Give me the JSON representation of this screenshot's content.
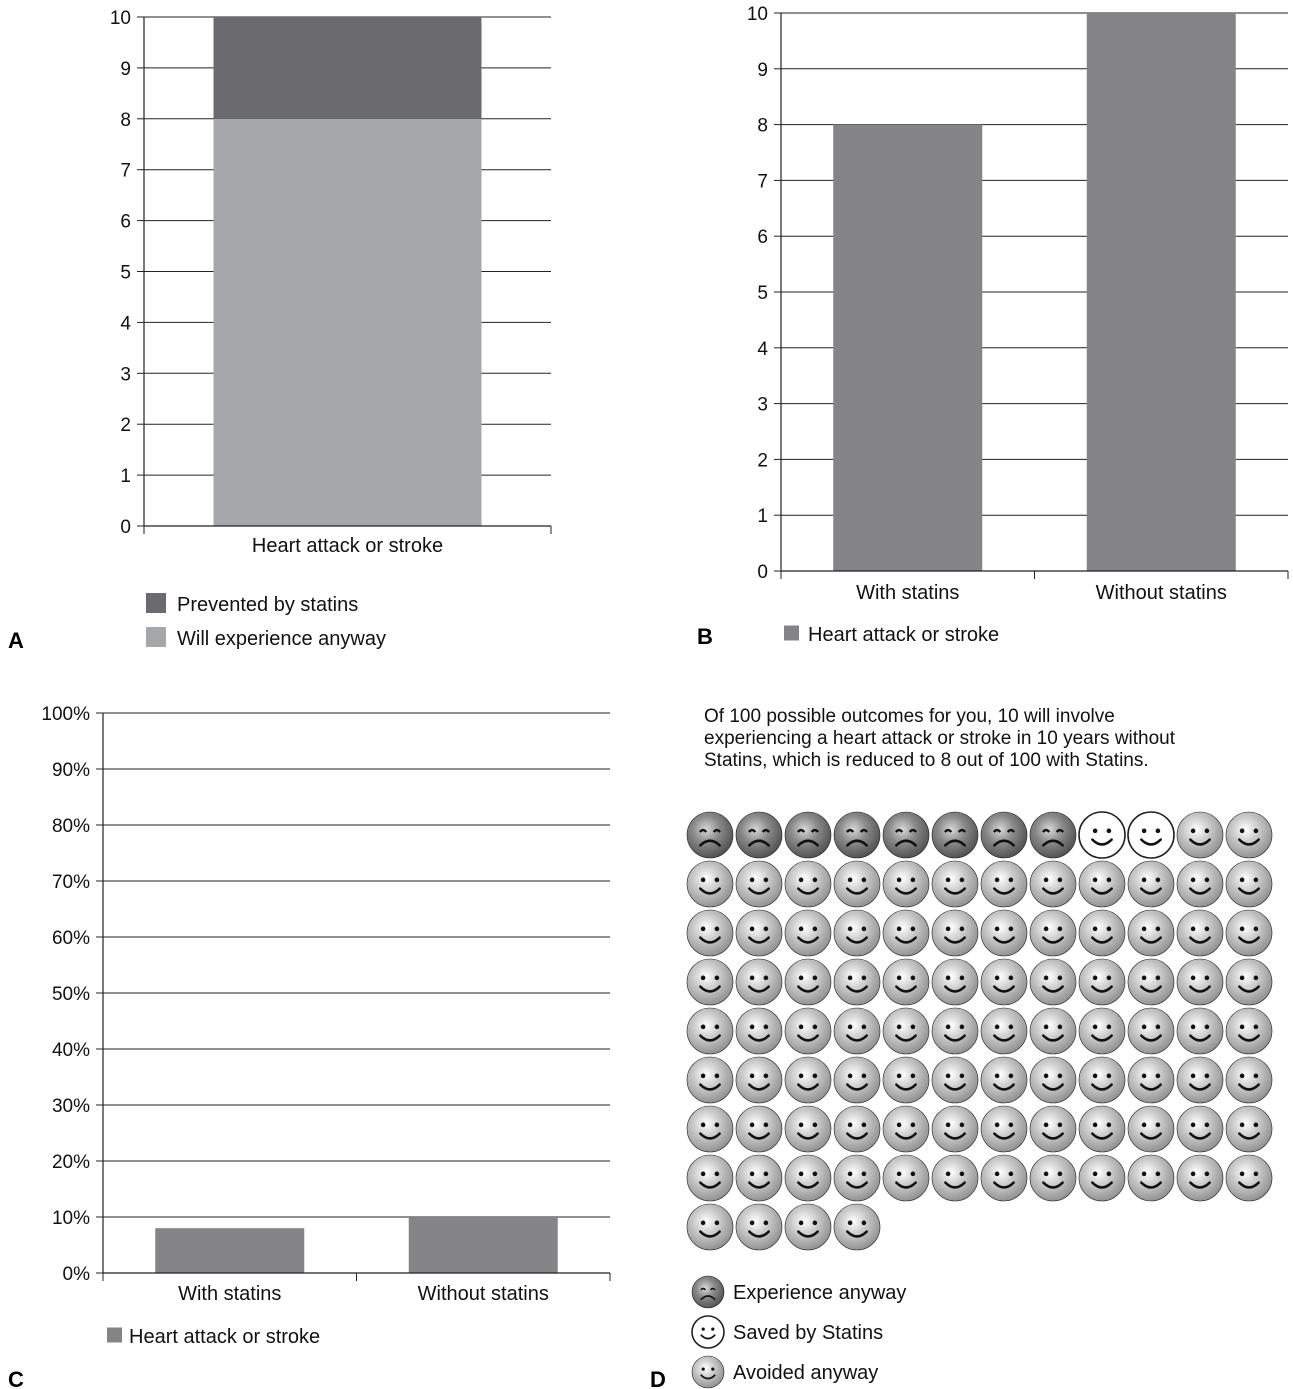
{
  "colors": {
    "prevented": "#6b6b6f",
    "anyway": "#a6a7ab",
    "bar": "#848487",
    "axis": "#222222"
  },
  "panel_labels": [
    "A",
    "B",
    "C",
    "D"
  ],
  "chart_data": [
    {
      "panel": "A",
      "type": "bar",
      "stacked": true,
      "categories": [
        "Heart attack or stroke"
      ],
      "series": [
        {
          "name": "Will experience anyway",
          "values": [
            8
          ]
        },
        {
          "name": "Prevented by statins",
          "values": [
            2
          ]
        }
      ],
      "yticks": [
        "0",
        "1",
        "2",
        "3",
        "4",
        "5",
        "6",
        "7",
        "8",
        "9",
        "10"
      ],
      "ylim": [
        0,
        10
      ],
      "grid": true,
      "legend": [
        "Prevented by statins",
        "Will experience anyway"
      ],
      "legend_position": "bottom"
    },
    {
      "panel": "B",
      "type": "bar",
      "categories": [
        "With statins",
        "Without statins"
      ],
      "series": [
        {
          "name": "Heart attack or stroke",
          "values": [
            8,
            10
          ]
        }
      ],
      "yticks": [
        "0",
        "1",
        "2",
        "3",
        "4",
        "5",
        "6",
        "7",
        "8",
        "9",
        "10"
      ],
      "ylim": [
        0,
        10
      ],
      "grid": true,
      "legend": [
        "Heart attack or stroke"
      ],
      "legend_position": "bottom"
    },
    {
      "panel": "C",
      "type": "bar",
      "categories": [
        "With statins",
        "Without statins"
      ],
      "series": [
        {
          "name": "Heart attack or stroke",
          "values": [
            8,
            10
          ]
        }
      ],
      "yticks": [
        "0%",
        "10%",
        "20%",
        "30%",
        "40%",
        "50%",
        "60%",
        "70%",
        "80%",
        "90%",
        "100%"
      ],
      "ylim": [
        0,
        100
      ],
      "grid": true,
      "legend": [
        "Heart attack or stroke"
      ],
      "legend_position": "bottom"
    },
    {
      "panel": "D",
      "type": "icon-array",
      "caption": "Of 100 possible outcomes for you, 10 will involve experiencing a heart attack or stroke in 10 years without Statins, which is reduced to 8 out of 100 with Statins.",
      "total": 100,
      "columns": 12,
      "counts": {
        "experience_anyway": 8,
        "saved": 2,
        "avoided": 90
      },
      "legend": [
        "Experience anyway",
        "Saved by Statins",
        "Avoided anyway"
      ],
      "legend_position": "bottom-left"
    }
  ]
}
